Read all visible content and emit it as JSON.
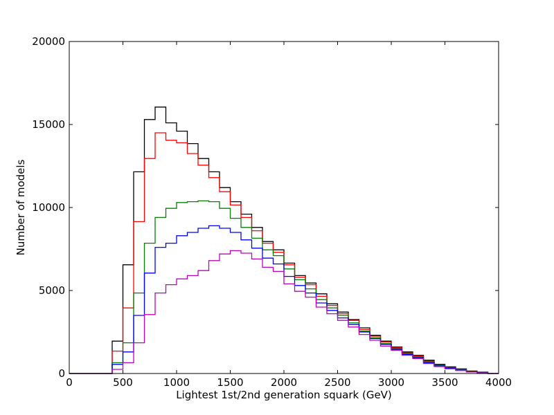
{
  "chart_data": {
    "type": "histogram-step",
    "xlabel": "Lightest 1st/2nd generation squark (GeV)",
    "ylabel": "Number of models",
    "xlim": [
      0,
      4000
    ],
    "ylim": [
      0,
      20000
    ],
    "xticks": [
      0,
      500,
      1000,
      1500,
      2000,
      2500,
      3000,
      3500,
      4000
    ],
    "yticks": [
      0,
      5000,
      10000,
      15000,
      20000
    ],
    "xtick_labels": [
      "0",
      "500",
      "1000",
      "1500",
      "2000",
      "2500",
      "3000",
      "3500",
      "4000"
    ],
    "ytick_labels": [
      "0",
      "5000",
      "10000",
      "15000",
      "20000"
    ],
    "grid": false,
    "legend": "none",
    "bin_edges": [
      0,
      100,
      200,
      300,
      400,
      500,
      600,
      700,
      800,
      900,
      1000,
      1100,
      1200,
      1300,
      1400,
      1500,
      1600,
      1700,
      1800,
      1900,
      2000,
      2100,
      2200,
      2300,
      2400,
      2500,
      2600,
      2700,
      2800,
      2900,
      3000,
      3100,
      3200,
      3300,
      3400,
      3500,
      3600,
      3700,
      3800,
      3900,
      4000
    ],
    "series": [
      {
        "color": "#000000",
        "values": [
          0,
          0,
          0,
          0,
          1950,
          6550,
          12150,
          15300,
          16050,
          15100,
          14600,
          13850,
          12950,
          12150,
          11200,
          10350,
          9600,
          8800,
          7950,
          7450,
          6650,
          5900,
          5450,
          4800,
          4200,
          3700,
          3250,
          2750,
          2300,
          1950,
          1600,
          1300,
          1100,
          800,
          550,
          400,
          280,
          150,
          80,
          0
        ]
      },
      {
        "color": "#ff0000",
        "values": [
          0,
          0,
          0,
          0,
          1350,
          3950,
          9150,
          12950,
          14500,
          14050,
          13900,
          13250,
          12550,
          11800,
          10950,
          10150,
          9400,
          8600,
          7850,
          7300,
          6550,
          5800,
          5350,
          4650,
          4100,
          3600,
          3200,
          2650,
          2250,
          1900,
          1550,
          1250,
          1050,
          750,
          500,
          350,
          250,
          120,
          60,
          0
        ]
      },
      {
        "color": "#008000",
        "values": [
          0,
          0,
          0,
          0,
          650,
          1850,
          4850,
          7850,
          9400,
          9950,
          10300,
          10350,
          10400,
          10350,
          9950,
          9350,
          8800,
          8150,
          7450,
          7100,
          6300,
          5650,
          5100,
          4450,
          3950,
          3500,
          3050,
          2550,
          2150,
          1800,
          1500,
          1200,
          1000,
          700,
          480,
          330,
          220,
          110,
          50,
          0
        ]
      },
      {
        "color": "#0000ff",
        "values": [
          0,
          0,
          0,
          0,
          550,
          1300,
          3500,
          6050,
          7600,
          7850,
          8300,
          8500,
          8750,
          8900,
          8750,
          8500,
          8050,
          7550,
          6950,
          6600,
          5850,
          5300,
          4850,
          4250,
          3800,
          3350,
          2950,
          2500,
          2100,
          1750,
          1450,
          1150,
          950,
          650,
          450,
          310,
          200,
          100,
          40,
          0
        ]
      },
      {
        "color": "#bf00bf",
        "values": [
          0,
          0,
          0,
          0,
          250,
          650,
          1850,
          3550,
          4850,
          5350,
          5700,
          5900,
          6200,
          6800,
          7200,
          7400,
          7250,
          6900,
          6400,
          6150,
          5400,
          4950,
          4600,
          4000,
          3600,
          3200,
          2800,
          2350,
          2000,
          1650,
          1400,
          1100,
          900,
          600,
          420,
          280,
          180,
          90,
          30,
          0
        ]
      }
    ]
  }
}
